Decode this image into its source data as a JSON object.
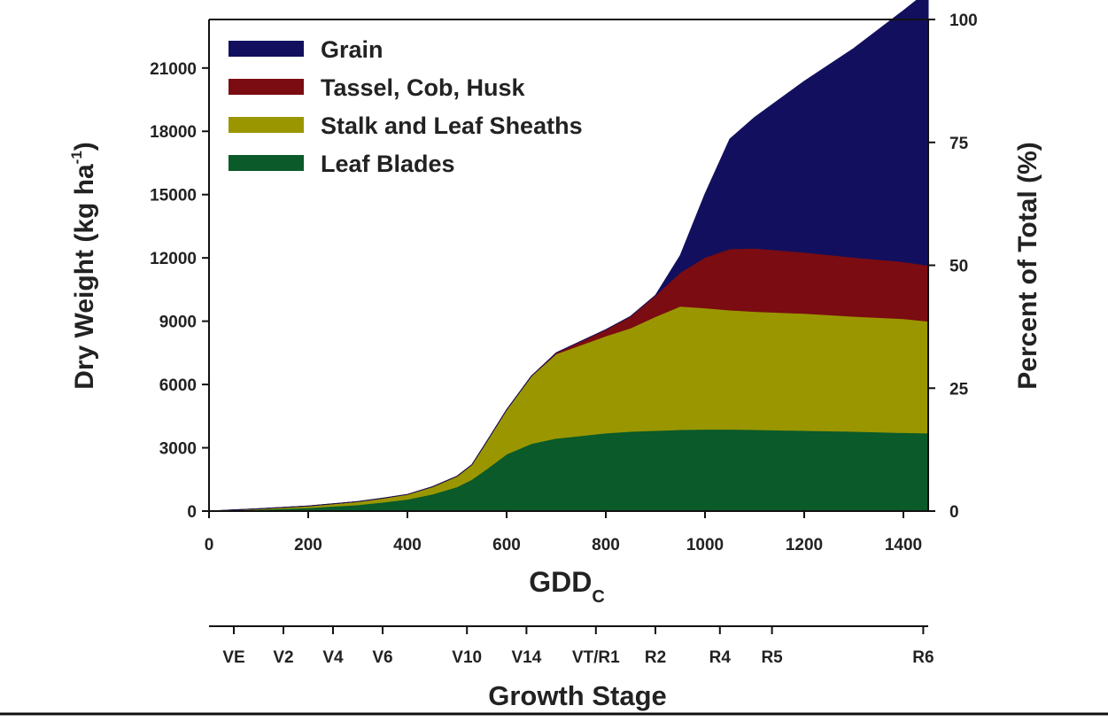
{
  "chart_data": {
    "type": "area",
    "stacked": true,
    "xlabel": "GDD",
    "xlabel_subscript": "C",
    "ylabel_left_main": "Dry Weight (kg ha",
    "ylabel_left_sup": "-1",
    "ylabel_left_close": ")",
    "ylabel_right": "Percent of Total (%)",
    "xlim": [
      0,
      1450
    ],
    "ylim": [
      0,
      23300
    ],
    "x_ticks": [
      0,
      200,
      400,
      600,
      800,
      1000,
      1200,
      1400
    ],
    "y_ticks_left": [
      0,
      3000,
      6000,
      9000,
      12000,
      15000,
      18000,
      21000
    ],
    "y_ticks_right": [
      0,
      25,
      50,
      75,
      100
    ],
    "legend_position": "top-left",
    "x": [
      0,
      100,
      200,
      300,
      350,
      400,
      450,
      500,
      530,
      560,
      600,
      650,
      700,
      800,
      850,
      900,
      950,
      1000,
      1050,
      1100,
      1200,
      1300,
      1400,
      1450
    ],
    "series": [
      {
        "name": "Leaf Blades",
        "color": "#0a5a2a",
        "values": [
          0,
          80,
          160,
          300,
          420,
          560,
          800,
          1150,
          1500,
          2000,
          2700,
          3200,
          3450,
          3700,
          3780,
          3820,
          3860,
          3880,
          3880,
          3860,
          3820,
          3780,
          3720,
          3700
        ]
      },
      {
        "name": "Stalk and Leaf Sheaths",
        "color": "#9a9600",
        "values": [
          0,
          30,
          80,
          150,
          190,
          230,
          350,
          500,
          700,
          1300,
          2100,
          3200,
          4000,
          4600,
          4900,
          5400,
          5850,
          5750,
          5650,
          5600,
          5550,
          5450,
          5400,
          5300
        ]
      },
      {
        "name": "Tassel, Cob, Husk",
        "color": "#7a0c12",
        "values": [
          0,
          0,
          0,
          0,
          0,
          0,
          0,
          0,
          0,
          0,
          0,
          0,
          50,
          300,
          550,
          1000,
          1600,
          2400,
          2900,
          3000,
          2900,
          2800,
          2700,
          2650
        ]
      },
      {
        "name": "Grain",
        "color": "#12105e",
        "values": [
          0,
          0,
          0,
          0,
          0,
          0,
          0,
          0,
          0,
          0,
          0,
          0,
          0,
          0,
          0,
          0,
          800,
          3000,
          5200,
          6200,
          8100,
          9900,
          11900,
          13000
        ]
      }
    ],
    "legend_order": [
      "Grain",
      "Tassel, Cob, Husk",
      "Stalk and Leaf Sheaths",
      "Leaf Blades"
    ],
    "growth_stage": {
      "title": "Growth Stage",
      "stages": [
        {
          "label": "VE",
          "gdd": 50
        },
        {
          "label": "V2",
          "gdd": 150
        },
        {
          "label": "V4",
          "gdd": 250
        },
        {
          "label": "V6",
          "gdd": 350
        },
        {
          "label": "V10",
          "gdd": 520
        },
        {
          "label": "V14",
          "gdd": 640
        },
        {
          "label": "VT/R1",
          "gdd": 780
        },
        {
          "label": "R2",
          "gdd": 900
        },
        {
          "label": "R4",
          "gdd": 1030
        },
        {
          "label": "R5",
          "gdd": 1135
        },
        {
          "label": "R6",
          "gdd": 1440
        }
      ]
    }
  }
}
